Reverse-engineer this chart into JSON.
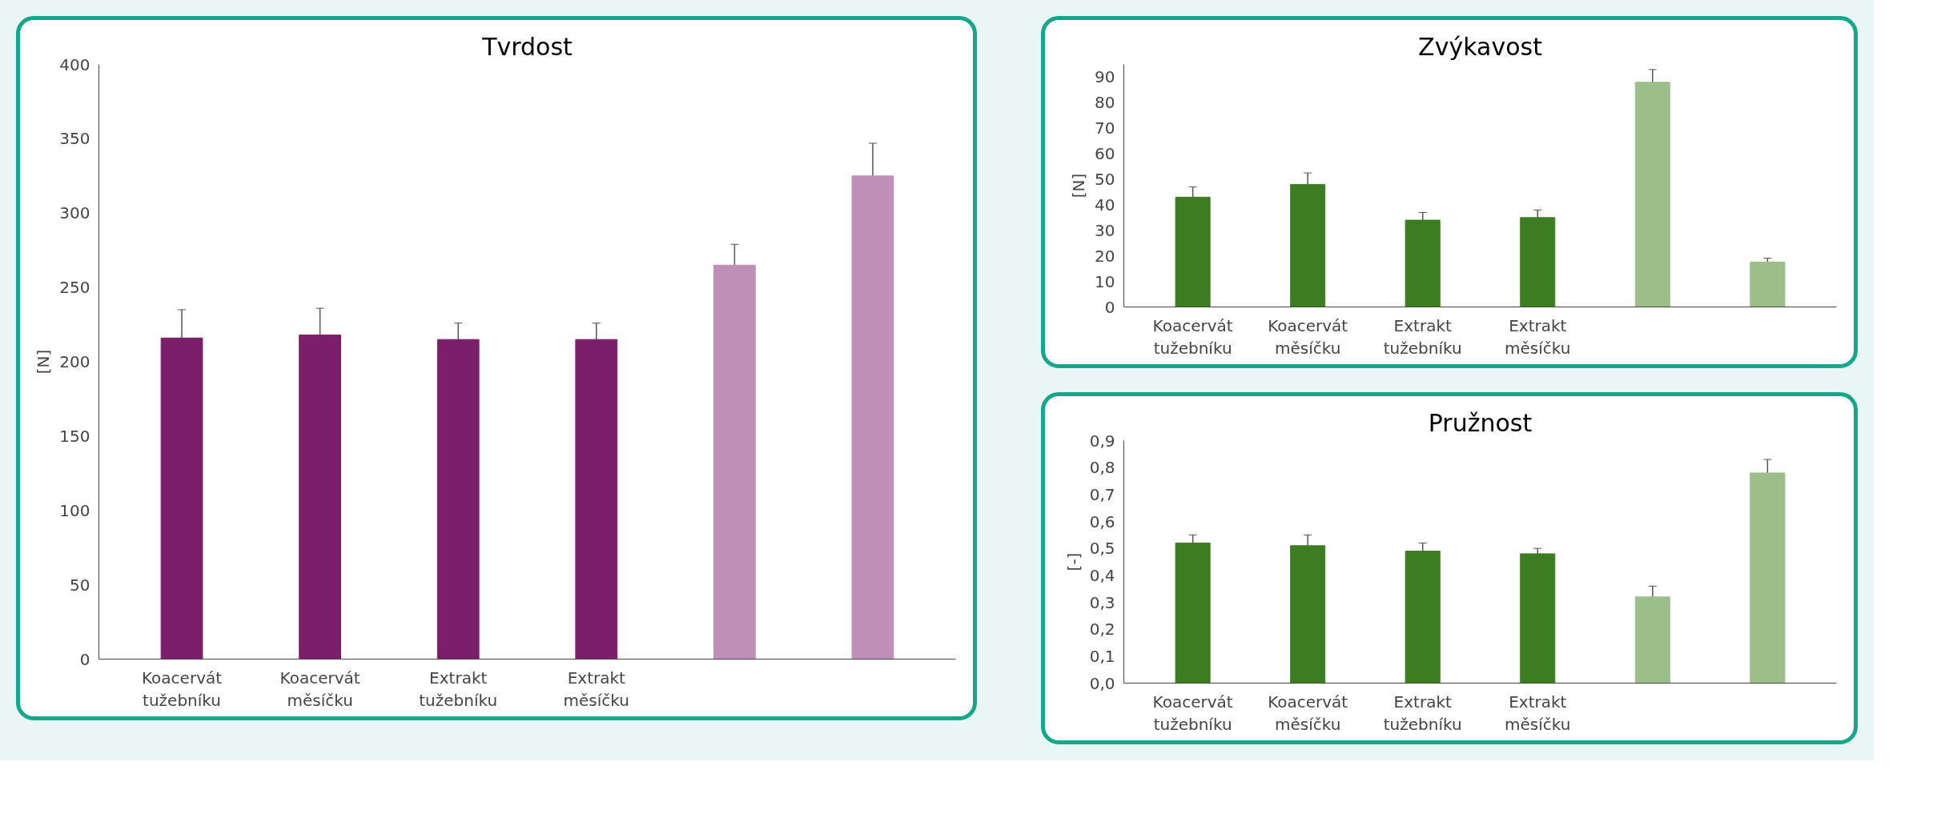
{
  "chart_data": [
    {
      "type": "bar",
      "title": "Tvrdost",
      "ylabel": "[N]",
      "categories": [
        "Koacervát\ntužebníku",
        "Koacervát\nměsíčku",
        "Extrakt\ntužebníku",
        "Extrakt\nměsíčku",
        null,
        null
      ],
      "values": [
        216,
        218,
        215,
        215,
        265,
        325
      ],
      "errors": [
        19,
        18,
        11,
        11,
        14,
        22
      ],
      "colors": [
        "#7b1f6a",
        "#7b1f6a",
        "#7b1f6a",
        "#7b1f6a",
        "#bf8fb8",
        "#bf8fb8"
      ],
      "ylim": [
        0,
        400
      ],
      "yticks": [
        0,
        50,
        100,
        150,
        200,
        250,
        300,
        350,
        400
      ],
      "grid": false
    },
    {
      "type": "bar",
      "title": "Zvýkavost",
      "ylabel": "[N]",
      "categories": [
        "Koacervát\ntužebníku",
        "Koacervát\nměsíčku",
        "Extrakt\ntužebníku",
        "Extrakt\nměsíčku",
        null,
        null
      ],
      "values": [
        43,
        48,
        34,
        35,
        88,
        17.6
      ],
      "errors": [
        4,
        4.5,
        3,
        3,
        5,
        1.5
      ],
      "colors": [
        "#3c7d22",
        "#3c7d22",
        "#3c7d22",
        "#3c7d22",
        "#9cbf8a",
        "#9cbf8a"
      ],
      "ylim": [
        0,
        95
      ],
      "yticks": [
        0,
        10,
        20,
        30,
        40,
        50,
        60,
        70,
        80,
        90
      ],
      "grid": false
    },
    {
      "type": "bar",
      "title": "Pružnost",
      "ylabel": "[-]",
      "categories": [
        "Koacervát\ntužebníku",
        "Koacervát\nměsíčku",
        "Extrakt\ntužebníku",
        "Extrakt\nměsíčku",
        null,
        null
      ],
      "values": [
        0.52,
        0.51,
        0.49,
        0.48,
        0.32,
        0.78
      ],
      "errors": [
        0.03,
        0.04,
        0.03,
        0.02,
        0.04,
        0.05
      ],
      "colors": [
        "#3c7d22",
        "#3c7d22",
        "#3c7d22",
        "#3c7d22",
        "#9cbf8a",
        "#9cbf8a"
      ],
      "ylim": [
        0,
        0.9
      ],
      "yticks": [
        {
          "value": 0,
          "label": "0,0"
        },
        {
          "value": 0.1,
          "label": "0,1"
        },
        {
          "value": 0.2,
          "label": "0,2"
        },
        {
          "value": 0.3,
          "label": "0,3"
        },
        {
          "value": 0.4,
          "label": "0,4"
        },
        {
          "value": 0.5,
          "label": "0,5"
        },
        {
          "value": 0.6,
          "label": "0,6"
        },
        {
          "value": 0.7,
          "label": "0,7"
        },
        {
          "value": 0.8,
          "label": "0,8"
        },
        {
          "value": 0.9,
          "label": "0,9"
        }
      ],
      "grid": false
    }
  ]
}
